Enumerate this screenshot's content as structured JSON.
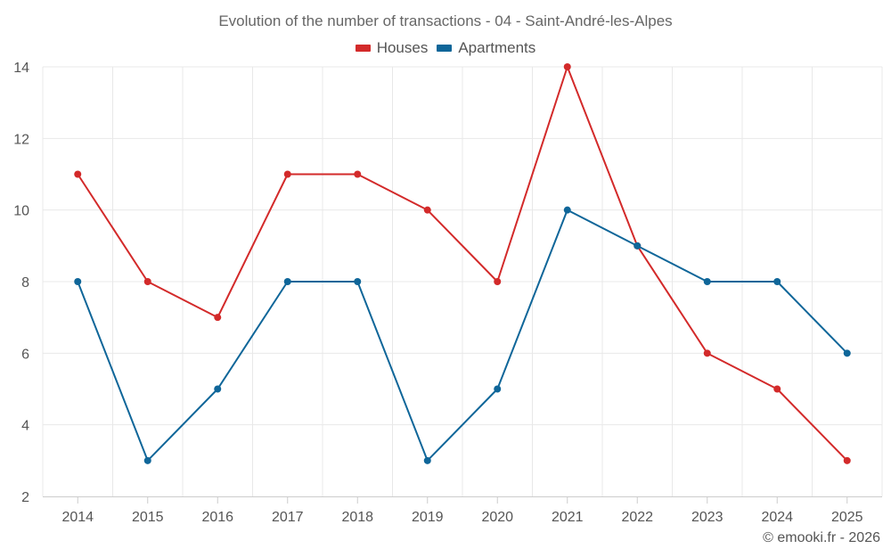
{
  "chart_data": {
    "type": "line",
    "title": "Evolution of the number of transactions - 04 - Saint-André-les-Alpes",
    "xlabel": "",
    "ylabel": "",
    "categories": [
      "2014",
      "2015",
      "2016",
      "2017",
      "2018",
      "2019",
      "2020",
      "2021",
      "2022",
      "2023",
      "2024",
      "2025"
    ],
    "ylim": [
      2,
      14
    ],
    "yticks": [
      2,
      4,
      6,
      8,
      10,
      12,
      14
    ],
    "grid": true,
    "legend_position": "top-center",
    "series": [
      {
        "name": "Houses",
        "color": "#d32a2a",
        "values": [
          11,
          8,
          7,
          11,
          11,
          10,
          8,
          14,
          9,
          6,
          5,
          3
        ]
      },
      {
        "name": "Apartments",
        "color": "#0f6699",
        "values": [
          8,
          3,
          5,
          8,
          8,
          3,
          5,
          10,
          9,
          8,
          8,
          6
        ]
      }
    ]
  },
  "credits": "© emooki.fr - 2026"
}
